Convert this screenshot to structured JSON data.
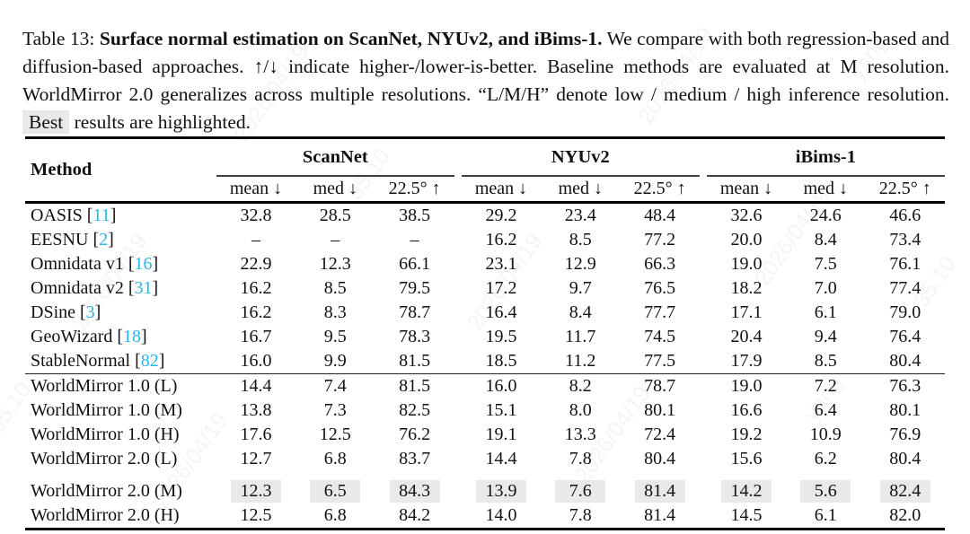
{
  "caption": {
    "prefix": "Table 13: ",
    "bold": "Surface normal estimation on ScanNet, NYUv2, and iBims-1.",
    "body": " We compare with both regression-based and diffusion-based approaches. ↑/↓ indicate higher-/lower-is-better. Baseline methods are evaluated at M resolution. WorldMirror 2.0 generalizes across multiple resolutions. “L/M/H” denote low / medium / high inference resolution. ",
    "best_word": "Best",
    "after_best": " results are highlighted."
  },
  "table": {
    "method_header": "Method",
    "groups": [
      {
        "label": "ScanNet"
      },
      {
        "label": "NYUv2"
      },
      {
        "label": "iBims-1"
      }
    ],
    "subheaders": [
      "mean ↓",
      "med ↓",
      "22.5° ↑"
    ],
    "rows": [
      {
        "method": "OASIS",
        "cite": "11",
        "values": [
          "32.8",
          "28.5",
          "38.5",
          "29.2",
          "23.4",
          "48.4",
          "32.6",
          "24.6",
          "46.6"
        ]
      },
      {
        "method": "EESNU",
        "cite": "2",
        "values": [
          "–",
          "–",
          "–",
          "16.2",
          "8.5",
          "77.2",
          "20.0",
          "8.4",
          "73.4"
        ]
      },
      {
        "method": "Omnidata v1",
        "cite": "16",
        "values": [
          "22.9",
          "12.3",
          "66.1",
          "23.1",
          "12.9",
          "66.3",
          "19.0",
          "7.5",
          "76.1"
        ]
      },
      {
        "method": "Omnidata v2",
        "cite": "31",
        "values": [
          "16.2",
          "8.5",
          "79.5",
          "17.2",
          "9.7",
          "76.5",
          "18.2",
          "7.0",
          "77.4"
        ]
      },
      {
        "method": "DSine",
        "cite": "3",
        "values": [
          "16.2",
          "8.3",
          "78.7",
          "16.4",
          "8.4",
          "77.7",
          "17.1",
          "6.1",
          "79.0"
        ]
      },
      {
        "method": "GeoWizard",
        "cite": "18",
        "values": [
          "16.7",
          "9.5",
          "78.3",
          "19.5",
          "11.7",
          "74.5",
          "20.4",
          "9.4",
          "76.4"
        ]
      },
      {
        "method": "StableNormal",
        "cite": "82",
        "values": [
          "16.0",
          "9.9",
          "81.5",
          "18.5",
          "11.2",
          "77.5",
          "17.9",
          "8.5",
          "80.4"
        ]
      },
      {
        "method": "WorldMirror 1.0 (L)",
        "rule_before": true,
        "values": [
          "14.4",
          "7.4",
          "81.5",
          "16.0",
          "8.2",
          "78.7",
          "19.0",
          "7.2",
          "76.3"
        ]
      },
      {
        "method": "WorldMirror 1.0 (M)",
        "values": [
          "13.8",
          "7.3",
          "82.5",
          "15.1",
          "8.0",
          "80.1",
          "16.6",
          "6.4",
          "80.1"
        ]
      },
      {
        "method": "WorldMirror 1.0 (H)",
        "values": [
          "17.6",
          "12.5",
          "76.2",
          "19.1",
          "13.3",
          "72.4",
          "19.2",
          "10.9",
          "76.9"
        ]
      },
      {
        "method": "WorldMirror 2.0 (L)",
        "values": [
          "12.7",
          "6.8",
          "83.7",
          "14.4",
          "7.8",
          "80.4",
          "15.6",
          "6.2",
          "80.4"
        ]
      },
      {
        "method": "WorldMirror 2.0 (M)",
        "gap_before": true,
        "highlight": true,
        "values": [
          "12.3",
          "6.5",
          "84.3",
          "13.9",
          "7.6",
          "81.4",
          "14.2",
          "5.6",
          "82.4"
        ]
      },
      {
        "method": "WorldMirror 2.0 (H)",
        "values": [
          "12.5",
          "6.8",
          "84.2",
          "14.0",
          "7.8",
          "81.4",
          "14.5",
          "6.1",
          "82.0"
        ]
      }
    ]
  },
  "colors": {
    "citation": "#2bb4ea",
    "highlight_bg": "#e9e9e9",
    "rule": "#000000"
  },
  "watermark": {
    "fragments": [
      "2026/04/19",
      "yang",
      "35.10"
    ]
  },
  "chart_data": {
    "type": "table",
    "title": "Surface normal estimation on ScanNet, NYUv2, and iBims-1",
    "column_groups": [
      "ScanNet",
      "NYUv2",
      "iBims-1"
    ],
    "metrics_per_group": [
      "mean ↓",
      "med ↓",
      "22.5° ↑"
    ],
    "methods": [
      "OASIS [11]",
      "EESNU [2]",
      "Omnidata v1 [16]",
      "Omnidata v2 [31]",
      "DSine [3]",
      "GeoWizard [18]",
      "StableNormal [82]",
      "WorldMirror 1.0 (L)",
      "WorldMirror 1.0 (M)",
      "WorldMirror 1.0 (H)",
      "WorldMirror 2.0 (L)",
      "WorldMirror 2.0 (M)",
      "WorldMirror 2.0 (H)"
    ],
    "values": [
      [
        32.8,
        28.5,
        38.5,
        29.2,
        23.4,
        48.4,
        32.6,
        24.6,
        46.6
      ],
      [
        null,
        null,
        null,
        16.2,
        8.5,
        77.2,
        20.0,
        8.4,
        73.4
      ],
      [
        22.9,
        12.3,
        66.1,
        23.1,
        12.9,
        66.3,
        19.0,
        7.5,
        76.1
      ],
      [
        16.2,
        8.5,
        79.5,
        17.2,
        9.7,
        76.5,
        18.2,
        7.0,
        77.4
      ],
      [
        16.2,
        8.3,
        78.7,
        16.4,
        8.4,
        77.7,
        17.1,
        6.1,
        79.0
      ],
      [
        16.7,
        9.5,
        78.3,
        19.5,
        11.7,
        74.5,
        20.4,
        9.4,
        76.4
      ],
      [
        16.0,
        9.9,
        81.5,
        18.5,
        11.2,
        77.5,
        17.9,
        8.5,
        80.4
      ],
      [
        14.4,
        7.4,
        81.5,
        16.0,
        8.2,
        78.7,
        19.0,
        7.2,
        76.3
      ],
      [
        13.8,
        7.3,
        82.5,
        15.1,
        8.0,
        80.1,
        16.6,
        6.4,
        80.1
      ],
      [
        17.6,
        12.5,
        76.2,
        19.1,
        13.3,
        72.4,
        19.2,
        10.9,
        76.9
      ],
      [
        12.7,
        6.8,
        83.7,
        14.4,
        7.8,
        80.4,
        15.6,
        6.2,
        80.4
      ],
      [
        12.3,
        6.5,
        84.3,
        13.9,
        7.6,
        81.4,
        14.2,
        5.6,
        82.4
      ],
      [
        12.5,
        6.8,
        84.2,
        14.0,
        7.8,
        81.4,
        14.5,
        6.1,
        82.0
      ]
    ],
    "best_row": "WorldMirror 2.0 (M)"
  }
}
